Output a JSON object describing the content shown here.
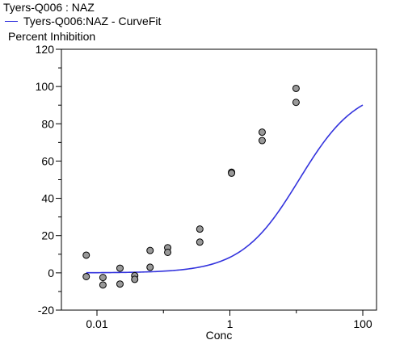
{
  "chart_data": {
    "type": "scatter",
    "title": "Tyers-Q006  :  NAZ",
    "xlabel": "Conc",
    "ylabel": "Percent Inhibition",
    "x_scale": "log",
    "xlim": [
      0.005,
      150
    ],
    "ylim": [
      -20,
      120
    ],
    "x_ticks": [
      {
        "value": 0.01,
        "label": "0.01"
      },
      {
        "value": 1,
        "label": "1"
      },
      {
        "value": 100,
        "label": "100"
      }
    ],
    "y_ticks": [
      {
        "value": -20,
        "label": "-20"
      },
      {
        "value": 0,
        "label": "0"
      },
      {
        "value": 20,
        "label": "20"
      },
      {
        "value": 40,
        "label": "40"
      },
      {
        "value": 60,
        "label": "60"
      },
      {
        "value": 80,
        "label": "80"
      },
      {
        "value": 100,
        "label": "100"
      },
      {
        "value": 120,
        "label": "120"
      }
    ],
    "grid": false,
    "legend": {
      "position": "top-left"
    },
    "series": [
      {
        "type": "scatter",
        "color": "#999999",
        "points": [
          {
            "x": 0.0069,
            "y": 9.5
          },
          {
            "x": 0.0069,
            "y": -2
          },
          {
            "x": 0.0123,
            "y": -2.5
          },
          {
            "x": 0.0123,
            "y": -6.5
          },
          {
            "x": 0.0222,
            "y": 2.5
          },
          {
            "x": 0.0222,
            "y": -6
          },
          {
            "x": 0.037,
            "y": -1.5
          },
          {
            "x": 0.037,
            "y": -3.5
          },
          {
            "x": 0.063,
            "y": 12
          },
          {
            "x": 0.063,
            "y": 3
          },
          {
            "x": 0.116,
            "y": 13.5
          },
          {
            "x": 0.116,
            "y": 11
          },
          {
            "x": 0.353,
            "y": 23.5
          },
          {
            "x": 0.353,
            "y": 16.5
          },
          {
            "x": 1.06,
            "y": 54
          },
          {
            "x": 1.06,
            "y": 53.5
          },
          {
            "x": 3.06,
            "y": 75.5
          },
          {
            "x": 3.06,
            "y": 71
          },
          {
            "x": 9.9,
            "y": 99
          },
          {
            "x": 9.9,
            "y": 91.5
          }
        ]
      },
      {
        "type": "line",
        "name": "Tyers-Q006:NAZ - CurveFit",
        "color": "#3333dd",
        "fit": {
          "model": "4PL",
          "bottom": 0,
          "top": 100,
          "ec50": 11,
          "hill": 1.0
        },
        "x_range": [
          0.0069,
          100
        ]
      }
    ]
  }
}
